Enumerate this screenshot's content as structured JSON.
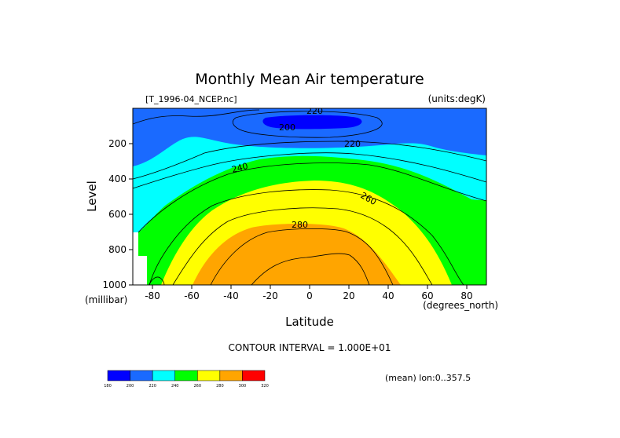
{
  "chart_data": {
    "type": "contour",
    "title": "Monthly Mean Air temperature",
    "file_label": "[T_1996-04_NCEP.nc]",
    "units_label": "(units:degK)",
    "xlabel": "Latitude",
    "ylabel": "Level",
    "x_units": "(degrees_north)",
    "y_units": "(millibar)",
    "x_ticks": [
      "-80",
      "-60",
      "-40",
      "-20",
      "0",
      "20",
      "40",
      "60",
      "80"
    ],
    "y_ticks": [
      "200",
      "400",
      "600",
      "800",
      "1000"
    ],
    "xlim": [
      -90,
      90
    ],
    "ylim": [
      1000,
      0
    ],
    "contour_interval_text": "CONTOUR INTERVAL = 1.000E+01",
    "contour_labels": [
      "220",
      "200",
      "220",
      "240",
      "260",
      "280"
    ],
    "footer_text": "(mean) lon:0..357.5",
    "colorbar": {
      "levels": [
        "180",
        "200",
        "220",
        "240",
        "260",
        "280",
        "300",
        "320"
      ],
      "colors": [
        "#0000ff",
        "#1a6aff",
        "#00ffff",
        "#00ff00",
        "#ffff00",
        "#ffa500",
        "#ff0000"
      ]
    }
  }
}
